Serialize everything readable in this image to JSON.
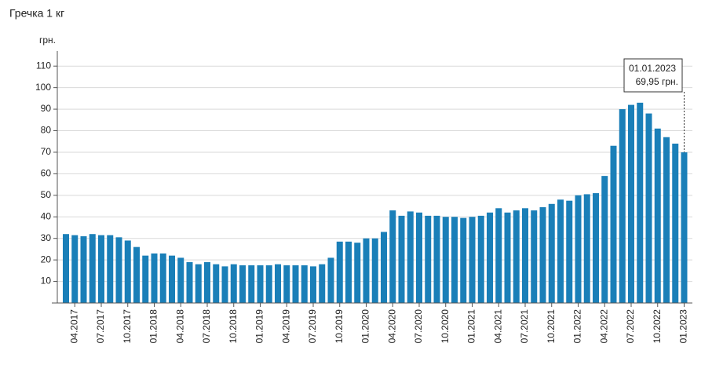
{
  "chart_data": {
    "type": "bar",
    "title": "Гречка 1 кг",
    "y_label": "грн.",
    "categories": [
      null,
      "04.2017",
      null,
      null,
      "07.2017",
      null,
      null,
      "10.2017",
      null,
      null,
      "01.2018",
      null,
      null,
      "04.2018",
      null,
      null,
      "07.2018",
      null,
      null,
      "10.2018",
      null,
      null,
      "01.2019",
      null,
      null,
      "04.2019",
      null,
      null,
      "07.2019",
      null,
      null,
      "10.2019",
      null,
      null,
      "01.2020",
      null,
      null,
      "04.2020",
      null,
      null,
      "07.2020",
      null,
      null,
      "10.2020",
      null,
      null,
      "01.2021",
      null,
      null,
      "04.2021",
      null,
      null,
      "07.2021",
      null,
      null,
      "10.2021",
      null,
      null,
      "01.2022",
      null,
      null,
      "04.2022",
      null,
      null,
      "07.2022",
      null,
      null,
      "10.2022",
      null,
      null,
      "01.2023"
    ],
    "values": [
      32,
      31.5,
      31,
      32,
      31.5,
      31.5,
      30.5,
      29,
      26,
      22,
      23,
      23,
      22,
      21,
      19,
      18,
      19,
      18,
      17,
      18,
      17.5,
      17.5,
      17.5,
      17.5,
      18,
      17.5,
      17.5,
      17.5,
      17,
      18,
      21,
      28.5,
      28.5,
      28,
      30,
      30,
      33,
      43,
      40.5,
      42.5,
      42,
      40.5,
      40.5,
      40,
      40,
      39.5,
      40,
      40.5,
      42,
      44,
      42,
      43,
      44,
      43,
      44.5,
      46,
      48,
      47.5,
      50,
      50.5,
      51,
      59,
      73,
      90,
      92,
      93,
      88,
      81,
      77,
      74,
      69.95
    ],
    "color": "#1a7fb8",
    "ylim": [
      0,
      117
    ],
    "yticks": [
      10,
      20,
      30,
      40,
      50,
      60,
      70,
      80,
      90,
      100,
      110
    ],
    "grid": true,
    "annotation": {
      "date": "01.01.2023",
      "label": "69,95 грн."
    }
  }
}
